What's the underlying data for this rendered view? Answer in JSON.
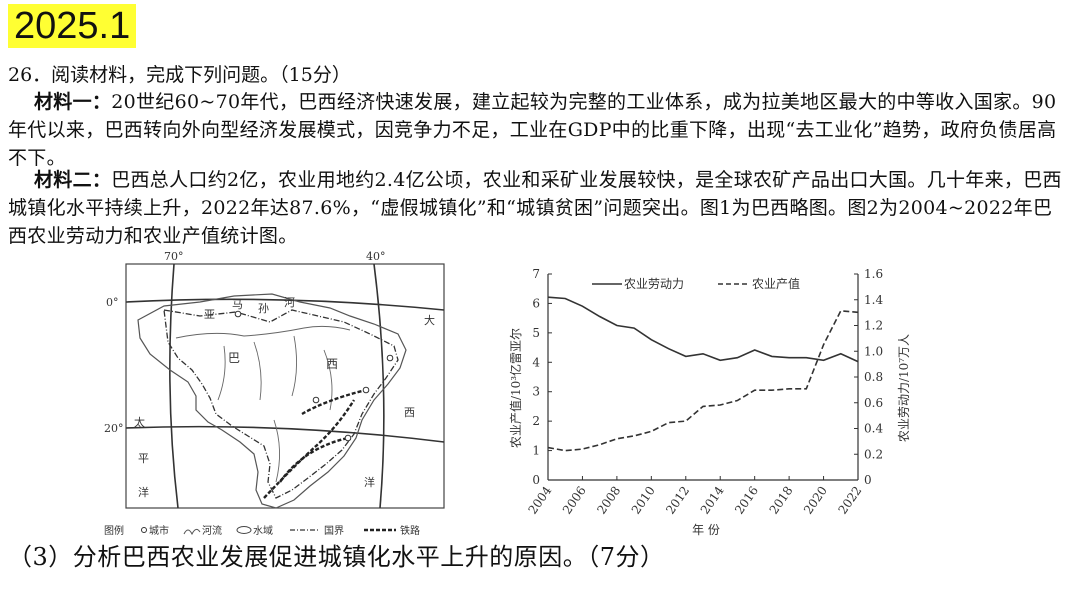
{
  "header": {
    "badge": "2025.1"
  },
  "question": {
    "head": "26．阅读材料，完成下列问题。（15分）",
    "m1_label": "材料一：",
    "m1_text": "20世纪60~70年代，巴西经济快速发展，建立起较为完整的工业体系，成为拉美地区最大的中等收入国家。90年代以来，巴西转向外向型经济发展模式，因竞争力不足，工业在GDP中的比重下降，出现“去工业化”趋势，政府负债居高不下。",
    "m2_label": "材料二：",
    "m2_text": "巴西总人口约2亿，农业用地约2.4亿公顷，农业和采矿业发展较快，是全球农矿产品出口大国。几十年来，巴西城镇化水平持续上升，2022年达87.6%，“虚假城镇化”和“城镇贫困”问题突出。图1为巴西略图。图2为2004~2022年巴西农业劳动力和农业产值统计图。",
    "sub_question": "（3）分析巴西农业发展促进城镇化水平上升的原因。（7分）"
  },
  "map": {
    "lon_labels": [
      "70°",
      "40°"
    ],
    "lat_labels": [
      "0°",
      "20°"
    ],
    "place_labels": [
      "亚",
      "马",
      "孙",
      "河",
      "巴",
      "西",
      "大",
      "西",
      "洋",
      "太",
      "平",
      "洋"
    ],
    "legend": {
      "title": "图例",
      "items": [
        "城市",
        "河流",
        "水域",
        "国界",
        "铁路"
      ]
    }
  },
  "chart_data": {
    "type": "line",
    "x": [
      2004,
      2005,
      2006,
      2007,
      2008,
      2009,
      2010,
      2011,
      2012,
      2013,
      2014,
      2015,
      2016,
      2017,
      2018,
      2019,
      2020,
      2021,
      2022
    ],
    "x_ticks": [
      "2004",
      "2006",
      "2008",
      "2010",
      "2012",
      "2014",
      "2016",
      "2018",
      "2020",
      "2022"
    ],
    "xlabel": "年 份",
    "ylabel_left": "农业产值/10³亿雷亚尔",
    "ylabel_right": "农业劳动力/10⁷万人",
    "ylim_left": [
      0,
      7
    ],
    "ylim_right": [
      0,
      1.6
    ],
    "yticks_left": [
      "0",
      "1",
      "2",
      "3",
      "4",
      "5",
      "6",
      "7"
    ],
    "yticks_right": [
      "0",
      "0.2",
      "0.4",
      "0.6",
      "0.8",
      "1.0",
      "1.2",
      "1.4",
      "1.6"
    ],
    "series": [
      {
        "name": "农业劳动力",
        "axis": "right",
        "style": "solid",
        "values": [
          1.42,
          1.41,
          1.35,
          1.27,
          1.2,
          1.18,
          1.09,
          1.02,
          0.96,
          0.98,
          0.93,
          0.95,
          1.01,
          0.96,
          0.95,
          0.95,
          0.93,
          0.98,
          0.92
        ]
      },
      {
        "name": "农业产值",
        "axis": "left",
        "style": "dashed",
        "values": [
          1.1,
          1.0,
          1.05,
          1.2,
          1.4,
          1.5,
          1.65,
          1.95,
          2.0,
          2.5,
          2.55,
          2.7,
          3.05,
          3.05,
          3.1,
          3.1,
          4.6,
          5.75,
          5.7
        ]
      }
    ]
  }
}
